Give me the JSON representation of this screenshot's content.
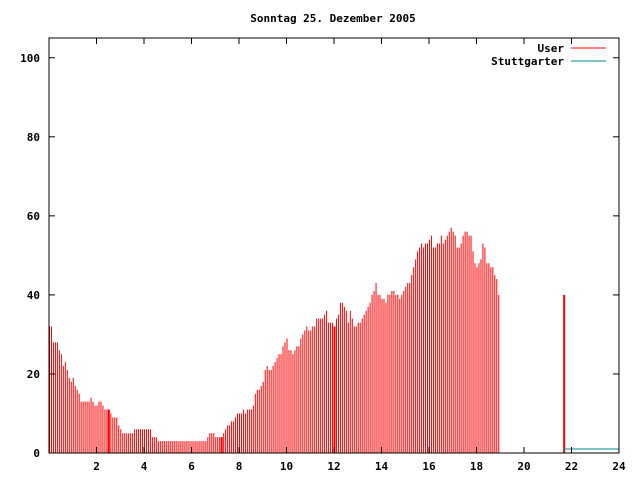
{
  "chart_data": {
    "type": "bar",
    "title": "Sonntag 25. Dezember 2005",
    "xlabel": "",
    "ylabel": "",
    "xlim": [
      0,
      24
    ],
    "ylim": [
      0,
      105
    ],
    "x_ticks": [
      2,
      4,
      6,
      8,
      10,
      12,
      14,
      16,
      18,
      20,
      22,
      24
    ],
    "y_ticks": [
      0,
      20,
      40,
      60,
      80,
      100
    ],
    "grid": false,
    "legend_position": "top-right",
    "series": [
      {
        "name": "User",
        "color": "#ff0000",
        "x_start": 0,
        "x_step": 0.08333,
        "values": [
          32,
          32,
          28,
          28,
          28,
          26,
          25,
          22,
          23,
          21,
          19,
          18,
          19,
          17,
          16,
          15,
          13,
          13,
          13,
          13,
          13,
          14,
          13,
          12,
          12,
          13,
          13,
          12,
          11,
          11,
          11,
          10,
          9,
          9,
          9,
          7,
          6,
          5,
          5,
          5,
          5,
          5,
          5,
          6,
          6,
          6,
          6,
          6,
          6,
          6,
          6,
          6,
          4,
          4,
          4,
          3,
          3,
          3,
          3,
          3,
          3,
          3,
          3,
          3,
          3,
          3,
          3,
          3,
          3,
          3,
          3,
          3,
          3,
          3,
          3,
          3,
          3,
          3,
          3,
          3,
          4,
          5,
          5,
          5,
          4,
          4,
          4,
          4,
          5,
          6,
          7,
          7,
          8,
          8,
          9,
          10,
          10,
          10,
          11,
          10,
          11,
          11,
          11,
          12,
          15,
          16,
          16,
          17,
          18,
          21,
          22,
          21,
          21,
          22,
          23,
          24,
          25,
          25,
          27,
          28,
          29,
          26,
          26,
          25,
          26,
          27,
          27,
          29,
          30,
          31,
          32,
          31,
          31,
          32,
          32,
          34,
          34,
          34,
          34,
          35,
          36,
          33,
          33,
          33,
          32,
          34,
          35,
          38,
          38,
          37,
          36,
          33,
          36,
          34,
          32,
          32,
          33,
          33,
          34,
          35,
          36,
          37,
          38,
          40,
          41,
          43,
          40,
          40,
          39,
          39,
          38,
          40,
          40,
          41,
          41,
          40,
          40,
          39,
          40,
          41,
          42,
          43,
          43,
          45,
          47,
          49,
          51,
          52,
          53,
          52,
          53,
          53,
          54,
          55,
          52,
          52,
          53,
          53,
          55,
          53,
          54,
          55,
          56,
          57,
          56,
          55,
          52,
          52,
          53,
          55,
          56,
          56,
          55,
          55,
          51,
          48,
          47,
          48,
          49,
          53,
          52,
          48,
          48,
          47,
          47,
          45,
          44,
          40
        ]
      },
      {
        "name": "Stuttgarter",
        "color": "#008b8b",
        "x_range": [
          21.67,
          24
        ],
        "value": 1
      }
    ]
  }
}
